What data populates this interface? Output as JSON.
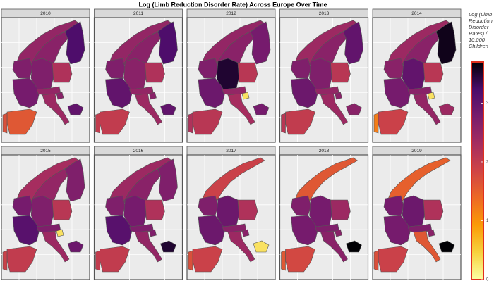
{
  "title": "Log (Limb Reduction Disorder Rate) Across Europe Over Time",
  "legend": {
    "title": "Log (Limb Reduction Disorder Rates) / 10,000 Children",
    "lim": [
      0,
      3.7
    ],
    "ticks": [
      0,
      1,
      2,
      3
    ],
    "colors": [
      "#fcffa4",
      "#f7d13d",
      "#fb9b06",
      "#ed6925",
      "#cf4446",
      "#a52c60",
      "#781c6d",
      "#4a0c6b",
      "#000004"
    ]
  },
  "chart_data": [
    {
      "type": "choropleth",
      "title": "2010",
      "values": [
        2.5,
        2.6,
        3.2,
        2.7,
        2.7,
        2.2,
        2.8,
        2.5,
        2.4,
        1.6,
        1.7,
        3.0,
        2.6
      ]
    },
    {
      "type": "choropleth",
      "title": "2011",
      "values": [
        2.5,
        2.6,
        3.2,
        2.7,
        2.6,
        2.2,
        3.0,
        2.5,
        2.4,
        2.0,
        2.0,
        3.0,
        2.6
      ]
    },
    {
      "type": "choropleth",
      "title": "2012",
      "values": [
        2.5,
        2.6,
        2.8,
        2.7,
        3.5,
        2.1,
        2.9,
        2.5,
        2.3,
        2.1,
        2.2,
        2.8,
        0.3
      ]
    },
    {
      "type": "choropleth",
      "title": "2013",
      "values": [
        2.4,
        2.6,
        3.0,
        2.7,
        2.7,
        2.1,
        2.9,
        2.5,
        2.4,
        2.0,
        2.1,
        2.6,
        2.6
      ]
    },
    {
      "type": "choropleth",
      "title": "2014",
      "values": [
        2.4,
        2.6,
        3.6,
        2.6,
        3.0,
        2.1,
        2.8,
        2.6,
        2.5,
        1.9,
        1.2,
        2.4,
        0.3
      ]
    },
    {
      "type": "choropleth",
      "title": "2015",
      "values": [
        2.3,
        2.5,
        2.7,
        2.8,
        2.7,
        2.1,
        3.1,
        2.7,
        2.4,
        2.0,
        1.9,
        2.9,
        0.3
      ]
    },
    {
      "type": "choropleth",
      "title": "2016",
      "values": [
        2.4,
        2.6,
        2.7,
        2.7,
        2.8,
        2.2,
        3.1,
        2.7,
        2.5,
        2.0,
        2.0,
        3.5,
        2.7
      ]
    },
    {
      "type": "choropleth",
      "title": "2017",
      "values": [
        1.9,
        null,
        null,
        2.7,
        2.9,
        2.2,
        2.9,
        2.6,
        2.4,
        1.9,
        1.7,
        0.3,
        2.6
      ]
    },
    {
      "type": "choropleth",
      "title": "2018",
      "values": [
        1.6,
        null,
        null,
        2.7,
        2.8,
        2.4,
        2.8,
        2.7,
        2.6,
        1.8,
        1.6,
        3.7,
        2.6
      ]
    },
    {
      "type": "choropleth",
      "title": "2019",
      "values": [
        1.5,
        null,
        null,
        2.8,
        2.9,
        2.2,
        2.8,
        2.7,
        1.6,
        1.9,
        1.7,
        3.7,
        2.6
      ]
    }
  ]
}
